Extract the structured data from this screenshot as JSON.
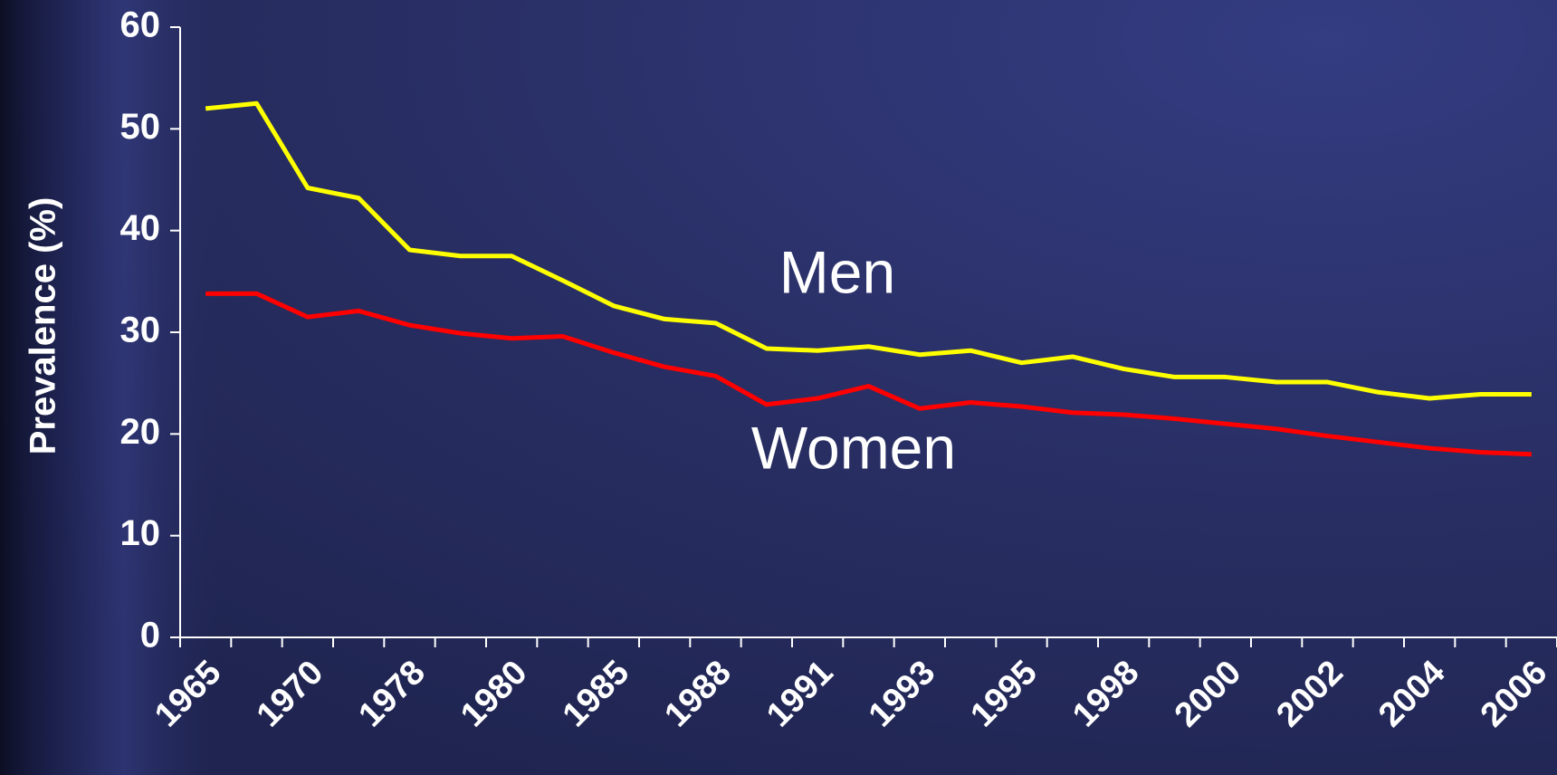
{
  "chart_data": {
    "type": "line",
    "y_label": "Prevalence (%)",
    "categories": [
      "1965",
      null,
      "1970",
      null,
      "1978",
      null,
      "1980",
      null,
      "1985",
      null,
      "1988",
      null,
      "1991",
      null,
      "1993",
      null,
      "1995",
      null,
      "1998",
      null,
      "2000",
      null,
      "2002",
      null,
      "2004",
      null,
      "2006"
    ],
    "series": [
      {
        "name": "Men",
        "color": "#ffff00",
        "values": [
          52.0,
          52.5,
          44.2,
          43.2,
          38.1,
          37.5,
          37.5,
          35.1,
          32.6,
          31.3,
          30.9,
          28.4,
          28.2,
          28.6,
          27.8,
          28.2,
          27.0,
          27.6,
          26.4,
          25.6,
          25.6,
          25.1,
          25.1,
          24.1,
          23.5,
          23.9,
          23.9
        ]
      },
      {
        "name": "Women",
        "color": "#ff0000",
        "values": [
          33.8,
          33.8,
          31.5,
          32.1,
          30.7,
          29.9,
          29.4,
          29.6,
          28.0,
          26.6,
          25.7,
          22.9,
          23.5,
          24.7,
          22.5,
          23.1,
          22.7,
          22.1,
          21.9,
          21.5,
          21.0,
          20.5,
          19.8,
          19.2,
          18.6,
          18.2,
          18.0
        ]
      }
    ],
    "ylim": [
      0,
      60
    ],
    "yticks": [
      0,
      10,
      20,
      30,
      40,
      50,
      60
    ]
  }
}
